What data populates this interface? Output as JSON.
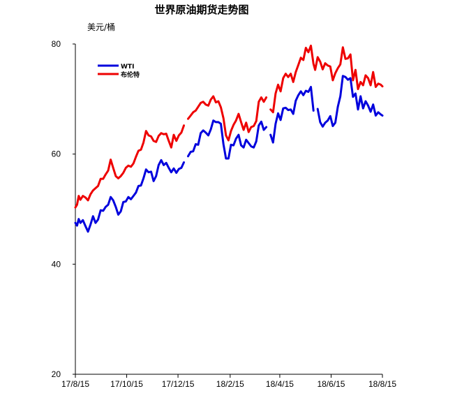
{
  "chart_data": {
    "type": "line",
    "title": "世界原油期货走势图",
    "ylabel": "美元/桶",
    "xlabel": "",
    "ylim": [
      20,
      80
    ],
    "yticks": [
      20,
      40,
      60,
      80
    ],
    "xlim": [
      "2017-08-15",
      "2018-08-15"
    ],
    "xticks": [
      {
        "date": "2017-08-15",
        "label": "17/8/15"
      },
      {
        "date": "2017-10-15",
        "label": "17/10/15"
      },
      {
        "date": "2017-12-15",
        "label": "17/12/15"
      },
      {
        "date": "2018-02-15",
        "label": "18/2/15"
      },
      {
        "date": "2018-04-15",
        "label": "18/4/15"
      },
      {
        "date": "2018-06-15",
        "label": "18/6/15"
      },
      {
        "date": "2018-08-15",
        "label": "18/8/15"
      }
    ],
    "grid": false,
    "legend": "top-left",
    "series": [
      {
        "name": "WTI",
        "color": "#0000dd",
        "points": [
          [
            "2017-08-15",
            47.5
          ],
          [
            "2017-08-17",
            47.0
          ],
          [
            "2017-08-19",
            48.2
          ],
          [
            "2017-08-21",
            47.5
          ],
          [
            "2017-08-24",
            48.0
          ],
          [
            "2017-08-27",
            46.9
          ],
          [
            "2017-08-30",
            45.9
          ],
          [
            "2017-09-02",
            47.2
          ],
          [
            "2017-09-05",
            48.7
          ],
          [
            "2017-09-08",
            47.5
          ],
          [
            "2017-09-11",
            48.1
          ],
          [
            "2017-09-14",
            49.8
          ],
          [
            "2017-09-17",
            49.7
          ],
          [
            "2017-09-20",
            50.4
          ],
          [
            "2017-09-23",
            50.8
          ],
          [
            "2017-09-26",
            52.2
          ],
          [
            "2017-09-29",
            51.6
          ],
          [
            "2017-10-02",
            50.4
          ],
          [
            "2017-10-05",
            49.0
          ],
          [
            "2017-10-08",
            49.6
          ],
          [
            "2017-10-11",
            51.3
          ],
          [
            "2017-10-14",
            51.4
          ],
          [
            "2017-10-17",
            52.2
          ],
          [
            "2017-10-20",
            51.8
          ],
          [
            "2017-10-23",
            52.4
          ],
          [
            "2017-10-26",
            53.0
          ],
          [
            "2017-10-29",
            54.2
          ],
          [
            "2017-11-01",
            54.3
          ],
          [
            "2017-11-04",
            55.6
          ],
          [
            "2017-11-07",
            57.2
          ],
          [
            "2017-11-10",
            56.7
          ],
          [
            "2017-11-13",
            56.8
          ],
          [
            "2017-11-16",
            55.1
          ],
          [
            "2017-11-19",
            56.0
          ],
          [
            "2017-11-22",
            58.0
          ],
          [
            "2017-11-25",
            58.9
          ],
          [
            "2017-11-28",
            58.0
          ],
          [
            "2017-12-01",
            58.4
          ],
          [
            "2017-12-04",
            57.5
          ],
          [
            "2017-12-07",
            56.7
          ],
          [
            "2017-12-10",
            57.4
          ],
          [
            "2017-12-13",
            56.6
          ],
          [
            "2017-12-16",
            57.3
          ],
          [
            "2017-12-19",
            57.5
          ],
          [
            "2017-12-22",
            58.5
          ],
          [
            "2017-12-25",
            null
          ],
          [
            "2017-12-27",
            59.6
          ],
          [
            "2017-12-30",
            60.4
          ],
          [
            "2018-01-02",
            60.5
          ],
          [
            "2018-01-05",
            61.8
          ],
          [
            "2018-01-08",
            61.7
          ],
          [
            "2018-01-11",
            63.8
          ],
          [
            "2018-01-14",
            64.3
          ],
          [
            "2018-01-17",
            63.9
          ],
          [
            "2018-01-20",
            63.4
          ],
          [
            "2018-01-23",
            64.5
          ],
          [
            "2018-01-26",
            66.1
          ],
          [
            "2018-01-29",
            65.8
          ],
          [
            "2018-02-01",
            65.8
          ],
          [
            "2018-02-04",
            65.5
          ],
          [
            "2018-02-07",
            61.8
          ],
          [
            "2018-02-10",
            59.2
          ],
          [
            "2018-02-13",
            59.2
          ],
          [
            "2018-02-16",
            61.7
          ],
          [
            "2018-02-19",
            61.6
          ],
          [
            "2018-02-22",
            62.8
          ],
          [
            "2018-02-25",
            63.5
          ],
          [
            "2018-02-28",
            61.6
          ],
          [
            "2018-03-03",
            61.2
          ],
          [
            "2018-03-06",
            62.6
          ],
          [
            "2018-03-09",
            62.0
          ],
          [
            "2018-03-12",
            61.4
          ],
          [
            "2018-03-15",
            61.2
          ],
          [
            "2018-03-18",
            62.3
          ],
          [
            "2018-03-21",
            65.2
          ],
          [
            "2018-03-24",
            65.9
          ],
          [
            "2018-03-27",
            64.4
          ],
          [
            "2018-03-30",
            64.9
          ],
          [
            "2018-04-01",
            null
          ],
          [
            "2018-04-04",
            63.5
          ],
          [
            "2018-04-07",
            62.1
          ],
          [
            "2018-04-10",
            65.5
          ],
          [
            "2018-04-13",
            67.4
          ],
          [
            "2018-04-16",
            66.2
          ],
          [
            "2018-04-19",
            68.3
          ],
          [
            "2018-04-22",
            68.4
          ],
          [
            "2018-04-25",
            68.0
          ],
          [
            "2018-04-28",
            68.1
          ],
          [
            "2018-05-01",
            67.3
          ],
          [
            "2018-05-04",
            69.7
          ],
          [
            "2018-05-07",
            70.7
          ],
          [
            "2018-05-10",
            71.4
          ],
          [
            "2018-05-13",
            70.7
          ],
          [
            "2018-05-16",
            71.5
          ],
          [
            "2018-05-19",
            71.3
          ],
          [
            "2018-05-22",
            72.2
          ],
          [
            "2018-05-25",
            67.9
          ],
          [
            "2018-05-27",
            null
          ],
          [
            "2018-05-30",
            68.2
          ],
          [
            "2018-06-02",
            65.8
          ],
          [
            "2018-06-05",
            65.0
          ],
          [
            "2018-06-08",
            65.7
          ],
          [
            "2018-06-11",
            66.1
          ],
          [
            "2018-06-14",
            66.9
          ],
          [
            "2018-06-17",
            65.1
          ],
          [
            "2018-06-20",
            65.7
          ],
          [
            "2018-06-23",
            68.6
          ],
          [
            "2018-06-26",
            70.5
          ],
          [
            "2018-06-29",
            74.2
          ],
          [
            "2018-07-02",
            74.0
          ],
          [
            "2018-07-05",
            73.5
          ],
          [
            "2018-07-08",
            73.8
          ],
          [
            "2018-07-11",
            70.4
          ],
          [
            "2018-07-14",
            71.0
          ],
          [
            "2018-07-17",
            68.1
          ],
          [
            "2018-07-20",
            70.5
          ],
          [
            "2018-07-23",
            68.3
          ],
          [
            "2018-07-26",
            69.6
          ],
          [
            "2018-07-29",
            68.8
          ],
          [
            "2018-08-01",
            67.7
          ],
          [
            "2018-08-04",
            69.0
          ],
          [
            "2018-08-07",
            67.0
          ],
          [
            "2018-08-10",
            67.6
          ],
          [
            "2018-08-13",
            67.2
          ],
          [
            "2018-08-15",
            67.0
          ]
        ]
      },
      {
        "name": "布伦特",
        "color": "#ee0000",
        "points": [
          [
            "2017-08-15",
            50.3
          ],
          [
            "2017-08-17",
            50.8
          ],
          [
            "2017-08-19",
            52.4
          ],
          [
            "2017-08-21",
            51.7
          ],
          [
            "2017-08-24",
            52.4
          ],
          [
            "2017-08-27",
            52.1
          ],
          [
            "2017-08-30",
            51.6
          ],
          [
            "2017-09-02",
            52.7
          ],
          [
            "2017-09-05",
            53.4
          ],
          [
            "2017-09-08",
            53.8
          ],
          [
            "2017-09-11",
            54.2
          ],
          [
            "2017-09-14",
            55.5
          ],
          [
            "2017-09-17",
            55.5
          ],
          [
            "2017-09-20",
            56.3
          ],
          [
            "2017-09-23",
            57.0
          ],
          [
            "2017-09-26",
            59.0
          ],
          [
            "2017-09-29",
            57.5
          ],
          [
            "2017-10-02",
            56.0
          ],
          [
            "2017-10-05",
            55.6
          ],
          [
            "2017-10-08",
            56.0
          ],
          [
            "2017-10-11",
            56.6
          ],
          [
            "2017-10-14",
            57.5
          ],
          [
            "2017-10-17",
            57.9
          ],
          [
            "2017-10-20",
            57.7
          ],
          [
            "2017-10-23",
            58.3
          ],
          [
            "2017-10-26",
            59.5
          ],
          [
            "2017-10-29",
            60.6
          ],
          [
            "2017-11-01",
            60.8
          ],
          [
            "2017-11-04",
            62.1
          ],
          [
            "2017-11-07",
            64.2
          ],
          [
            "2017-11-10",
            63.4
          ],
          [
            "2017-11-13",
            63.2
          ],
          [
            "2017-11-16",
            62.4
          ],
          [
            "2017-11-19",
            62.2
          ],
          [
            "2017-11-22",
            63.3
          ],
          [
            "2017-11-25",
            63.8
          ],
          [
            "2017-11-28",
            63.6
          ],
          [
            "2017-12-01",
            63.7
          ],
          [
            "2017-12-04",
            62.4
          ],
          [
            "2017-12-07",
            61.2
          ],
          [
            "2017-12-10",
            63.5
          ],
          [
            "2017-12-13",
            62.4
          ],
          [
            "2017-12-16",
            63.4
          ],
          [
            "2017-12-19",
            63.9
          ],
          [
            "2017-12-22",
            65.2
          ],
          [
            "2017-12-25",
            null
          ],
          [
            "2017-12-27",
            66.4
          ],
          [
            "2017-12-30",
            67.0
          ],
          [
            "2018-01-02",
            67.6
          ],
          [
            "2018-01-05",
            67.9
          ],
          [
            "2018-01-08",
            68.6
          ],
          [
            "2018-01-11",
            69.3
          ],
          [
            "2018-01-14",
            69.5
          ],
          [
            "2018-01-17",
            69.0
          ],
          [
            "2018-01-20",
            68.8
          ],
          [
            "2018-01-23",
            69.9
          ],
          [
            "2018-01-26",
            70.5
          ],
          [
            "2018-01-29",
            69.4
          ],
          [
            "2018-02-01",
            69.6
          ],
          [
            "2018-02-04",
            68.5
          ],
          [
            "2018-02-07",
            66.5
          ],
          [
            "2018-02-10",
            63.4
          ],
          [
            "2018-02-13",
            62.5
          ],
          [
            "2018-02-16",
            64.2
          ],
          [
            "2018-02-19",
            65.3
          ],
          [
            "2018-02-22",
            66.1
          ],
          [
            "2018-02-25",
            67.3
          ],
          [
            "2018-02-28",
            65.8
          ],
          [
            "2018-03-03",
            64.4
          ],
          [
            "2018-03-06",
            65.7
          ],
          [
            "2018-03-09",
            64.0
          ],
          [
            "2018-03-12",
            64.9
          ],
          [
            "2018-03-15",
            65.1
          ],
          [
            "2018-03-18",
            66.0
          ],
          [
            "2018-03-21",
            69.5
          ],
          [
            "2018-03-24",
            70.3
          ],
          [
            "2018-03-27",
            69.5
          ],
          [
            "2018-03-30",
            70.3
          ],
          [
            "2018-04-01",
            null
          ],
          [
            "2018-04-04",
            68.1
          ],
          [
            "2018-04-07",
            67.6
          ],
          [
            "2018-04-10",
            71.0
          ],
          [
            "2018-04-13",
            72.6
          ],
          [
            "2018-04-16",
            71.4
          ],
          [
            "2018-04-19",
            73.8
          ],
          [
            "2018-04-22",
            74.6
          ],
          [
            "2018-04-25",
            74.0
          ],
          [
            "2018-04-28",
            74.6
          ],
          [
            "2018-05-01",
            73.1
          ],
          [
            "2018-05-04",
            74.9
          ],
          [
            "2018-05-07",
            76.2
          ],
          [
            "2018-05-10",
            77.5
          ],
          [
            "2018-05-13",
            77.1
          ],
          [
            "2018-05-16",
            79.3
          ],
          [
            "2018-05-19",
            78.5
          ],
          [
            "2018-05-22",
            79.7
          ],
          [
            "2018-05-25",
            76.4
          ],
          [
            "2018-05-27",
            75.3
          ],
          [
            "2018-05-30",
            77.6
          ],
          [
            "2018-06-02",
            76.8
          ],
          [
            "2018-06-05",
            75.4
          ],
          [
            "2018-06-08",
            76.5
          ],
          [
            "2018-06-11",
            76.1
          ],
          [
            "2018-06-14",
            75.9
          ],
          [
            "2018-06-17",
            73.4
          ],
          [
            "2018-06-20",
            74.7
          ],
          [
            "2018-06-23",
            75.6
          ],
          [
            "2018-06-26",
            76.3
          ],
          [
            "2018-06-29",
            79.4
          ],
          [
            "2018-07-02",
            77.3
          ],
          [
            "2018-07-05",
            77.4
          ],
          [
            "2018-07-08",
            78.1
          ],
          [
            "2018-07-11",
            73.4
          ],
          [
            "2018-07-14",
            75.3
          ],
          [
            "2018-07-17",
            71.8
          ],
          [
            "2018-07-20",
            73.1
          ],
          [
            "2018-07-23",
            72.5
          ],
          [
            "2018-07-26",
            74.3
          ],
          [
            "2018-07-29",
            73.8
          ],
          [
            "2018-08-01",
            72.5
          ],
          [
            "2018-08-04",
            74.9
          ],
          [
            "2018-08-07",
            72.2
          ],
          [
            "2018-08-10",
            72.8
          ],
          [
            "2018-08-13",
            72.6
          ],
          [
            "2018-08-15",
            72.3
          ]
        ]
      }
    ]
  }
}
